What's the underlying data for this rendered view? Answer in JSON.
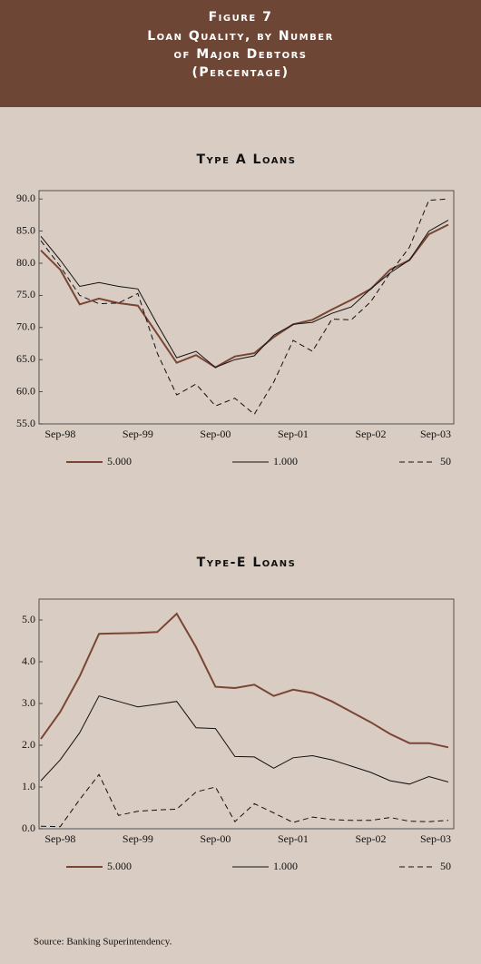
{
  "figure_title": [
    "Figure 7",
    "Loan Quality, by Number",
    "of Major Debtors",
    "(Percentage)"
  ],
  "chart_data": [
    {
      "type": "line",
      "title": "Type A Loans",
      "categories": [
        null,
        "Sep-98",
        null,
        null,
        null,
        "Sep-99",
        null,
        null,
        null,
        "Sep-00",
        null,
        null,
        null,
        "Sep-01",
        null,
        null,
        null,
        "Sep-02",
        null,
        null,
        null,
        "Sep-03"
      ],
      "ylim": [
        55,
        91.3
      ],
      "yticks": [
        {
          "value": 55,
          "label": "55.0"
        },
        {
          "value": 60,
          "label": "60.0"
        },
        {
          "value": 65,
          "label": "65.0"
        },
        {
          "value": 70,
          "label": "70.0"
        },
        {
          "value": 75,
          "label": "75.0"
        },
        {
          "value": 80,
          "label": "80.0"
        },
        {
          "value": 85,
          "label": "85.0"
        },
        {
          "value": 90,
          "label": "90.0"
        }
      ],
      "series": [
        {
          "name": "5.000",
          "color": "#7a4535",
          "line_width": 2,
          "line_style": "solid",
          "values": [
            82,
            79,
            73.6,
            74.5,
            73.8,
            73.4,
            69,
            64.5,
            65.7,
            63.8,
            65.5,
            66,
            68.5,
            70.5,
            71.2,
            72.8,
            74.3,
            76,
            79,
            80.5,
            84.5,
            86
          ]
        },
        {
          "name": "1.000",
          "color": "#111111",
          "line_width": 1,
          "line_style": "solid",
          "values": [
            84.2,
            80.5,
            76.4,
            77,
            76.4,
            76,
            70.5,
            65.3,
            66.3,
            63.8,
            65,
            65.6,
            68.8,
            70.5,
            70.8,
            72.2,
            73.2,
            76,
            78.5,
            80.5,
            85,
            86.7
          ]
        },
        {
          "name": "50",
          "color": "#111111",
          "line_width": 1,
          "line_style": "dashed",
          "values": [
            83.5,
            79.5,
            75,
            73.7,
            73.8,
            75.3,
            66,
            59.5,
            61.2,
            57.8,
            59,
            56.5,
            61.5,
            68,
            66.3,
            71.3,
            71.2,
            74,
            78.5,
            82.5,
            89.8,
            90
          ]
        }
      ]
    },
    {
      "type": "line",
      "title": "Type-E Loans",
      "categories": [
        null,
        "Sep-98",
        null,
        null,
        null,
        "Sep-99",
        null,
        null,
        null,
        "Sep-00",
        null,
        null,
        null,
        "Sep-01",
        null,
        null,
        null,
        "Sep-02",
        null,
        null,
        null,
        "Sep-03"
      ],
      "ylim": [
        0,
        5.5
      ],
      "yticks": [
        {
          "value": 0,
          "label": "0.0"
        },
        {
          "value": 1,
          "label": "1.0"
        },
        {
          "value": 2,
          "label": "2.0"
        },
        {
          "value": 3,
          "label": "3.0"
        },
        {
          "value": 4,
          "label": "4.0"
        },
        {
          "value": 5,
          "label": "5.0"
        }
      ],
      "series": [
        {
          "name": "5.000",
          "color": "#7a4535",
          "line_width": 2,
          "line_style": "solid",
          "values": [
            2.15,
            2.8,
            3.65,
            4.67,
            4.68,
            4.69,
            4.71,
            5.15,
            4.35,
            3.4,
            3.37,
            3.45,
            3.18,
            3.33,
            3.25,
            3.05,
            2.8,
            2.55,
            2.27,
            2.05,
            2.05,
            1.95
          ]
        },
        {
          "name": "1.000",
          "color": "#111111",
          "line_width": 1,
          "line_style": "solid",
          "values": [
            1.15,
            1.65,
            2.3,
            3.18,
            3.05,
            2.92,
            2.98,
            3.05,
            2.42,
            2.4,
            1.73,
            1.72,
            1.45,
            1.7,
            1.75,
            1.65,
            1.5,
            1.35,
            1.15,
            1.07,
            1.25,
            1.12
          ]
        },
        {
          "name": "50",
          "color": "#111111",
          "line_width": 1,
          "line_style": "dashed",
          "values": [
            0.06,
            0.05,
            0.7,
            1.3,
            0.32,
            0.42,
            0.45,
            0.47,
            0.88,
            1.0,
            0.17,
            0.6,
            0.38,
            0.15,
            0.28,
            0.22,
            0.2,
            0.2,
            0.27,
            0.18,
            0.17,
            0.2
          ]
        }
      ]
    }
  ],
  "source": "Source: Banking Superintendency."
}
